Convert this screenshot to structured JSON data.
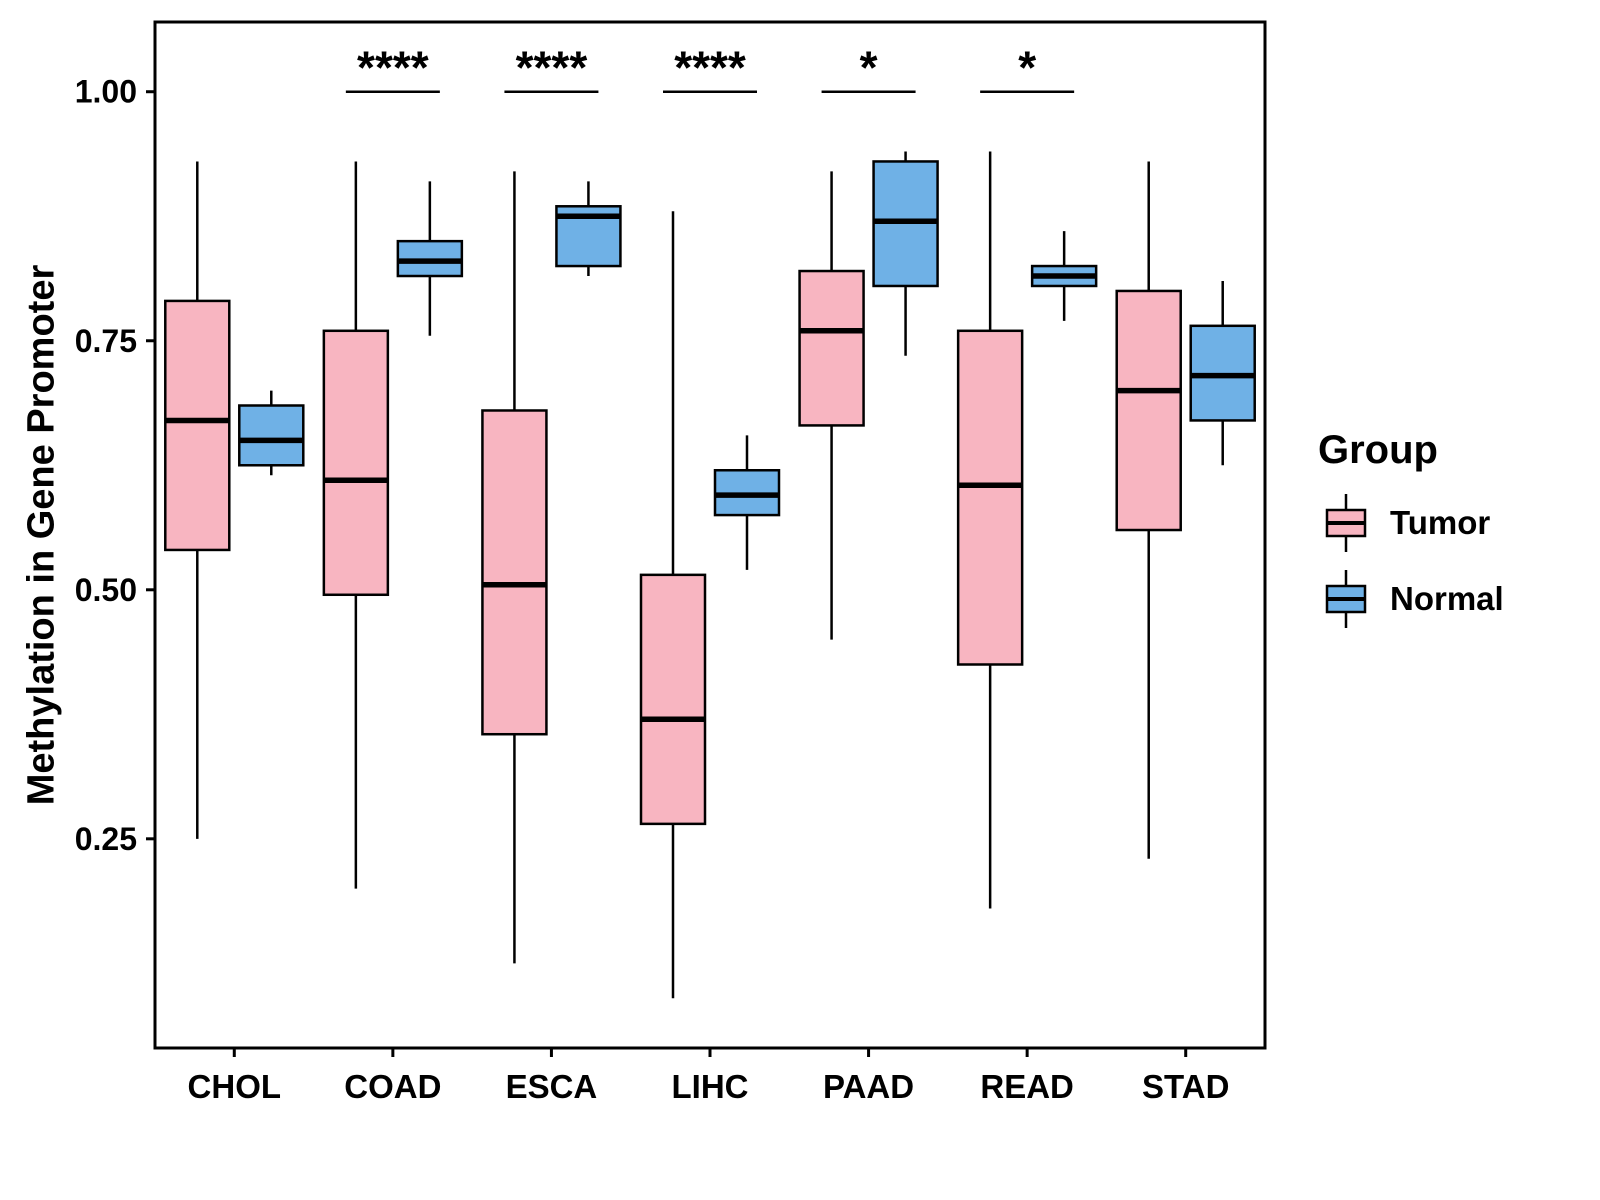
{
  "chart_data": {
    "type": "boxplot",
    "title": "",
    "xlabel": "",
    "ylabel": "Methylation in Gene Promoter",
    "categories": [
      "CHOL",
      "COAD",
      "ESCA",
      "LIHC",
      "PAAD",
      "READ",
      "STAD"
    ],
    "y_ticks": [
      {
        "value": 0.25,
        "label": "0.25"
      },
      {
        "value": 0.5,
        "label": "0.50"
      },
      {
        "value": 0.75,
        "label": "0.75"
      },
      {
        "value": 1.0,
        "label": "1.00"
      }
    ],
    "ylim": [
      0.04,
      1.07
    ],
    "grid": "off",
    "legend": {
      "title": "Group",
      "position": "right",
      "entries": [
        {
          "label": "Tumor",
          "color": "#F8B5C1"
        },
        {
          "label": "Normal",
          "color": "#6FB1E6"
        }
      ]
    },
    "series": [
      {
        "name": "Tumor",
        "color": "#F8B5C1",
        "boxes": [
          {
            "category": "CHOL",
            "whisker_low": 0.25,
            "q1": 0.54,
            "median": 0.67,
            "q3": 0.79,
            "whisker_high": 0.93
          },
          {
            "category": "COAD",
            "whisker_low": 0.2,
            "q1": 0.495,
            "median": 0.61,
            "q3": 0.76,
            "whisker_high": 0.93
          },
          {
            "category": "ESCA",
            "whisker_low": 0.125,
            "q1": 0.355,
            "median": 0.505,
            "q3": 0.68,
            "whisker_high": 0.92
          },
          {
            "category": "LIHC",
            "whisker_low": 0.09,
            "q1": 0.265,
            "median": 0.37,
            "q3": 0.515,
            "whisker_high": 0.88
          },
          {
            "category": "PAAD",
            "whisker_low": 0.45,
            "q1": 0.665,
            "median": 0.76,
            "q3": 0.82,
            "whisker_high": 0.92
          },
          {
            "category": "READ",
            "whisker_low": 0.18,
            "q1": 0.425,
            "median": 0.605,
            "q3": 0.76,
            "whisker_high": 0.94
          },
          {
            "category": "STAD",
            "whisker_low": 0.23,
            "q1": 0.56,
            "median": 0.7,
            "q3": 0.8,
            "whisker_high": 0.93
          }
        ]
      },
      {
        "name": "Normal",
        "color": "#6FB1E6",
        "boxes": [
          {
            "category": "CHOL",
            "whisker_low": 0.615,
            "q1": 0.625,
            "median": 0.65,
            "q3": 0.685,
            "whisker_high": 0.7
          },
          {
            "category": "COAD",
            "whisker_low": 0.755,
            "q1": 0.815,
            "median": 0.83,
            "q3": 0.85,
            "whisker_high": 0.91
          },
          {
            "category": "ESCA",
            "whisker_low": 0.815,
            "q1": 0.825,
            "median": 0.875,
            "q3": 0.885,
            "whisker_high": 0.91
          },
          {
            "category": "LIHC",
            "whisker_low": 0.52,
            "q1": 0.575,
            "median": 0.595,
            "q3": 0.62,
            "whisker_high": 0.655
          },
          {
            "category": "PAAD",
            "whisker_low": 0.735,
            "q1": 0.805,
            "median": 0.87,
            "q3": 0.93,
            "whisker_high": 0.94
          },
          {
            "category": "READ",
            "whisker_low": 0.77,
            "q1": 0.805,
            "median": 0.815,
            "q3": 0.825,
            "whisker_high": 0.86
          },
          {
            "category": "STAD",
            "whisker_low": 0.625,
            "q1": 0.67,
            "median": 0.715,
            "q3": 0.765,
            "whisker_high": 0.81
          }
        ]
      }
    ],
    "significance": [
      {
        "category": "COAD",
        "label": "****",
        "y": 1.0
      },
      {
        "category": "ESCA",
        "label": "****",
        "y": 1.0
      },
      {
        "category": "LIHC",
        "label": "****",
        "y": 1.0
      },
      {
        "category": "PAAD",
        "label": "*",
        "y": 1.0
      },
      {
        "category": "READ",
        "label": "*",
        "y": 1.0
      }
    ]
  }
}
